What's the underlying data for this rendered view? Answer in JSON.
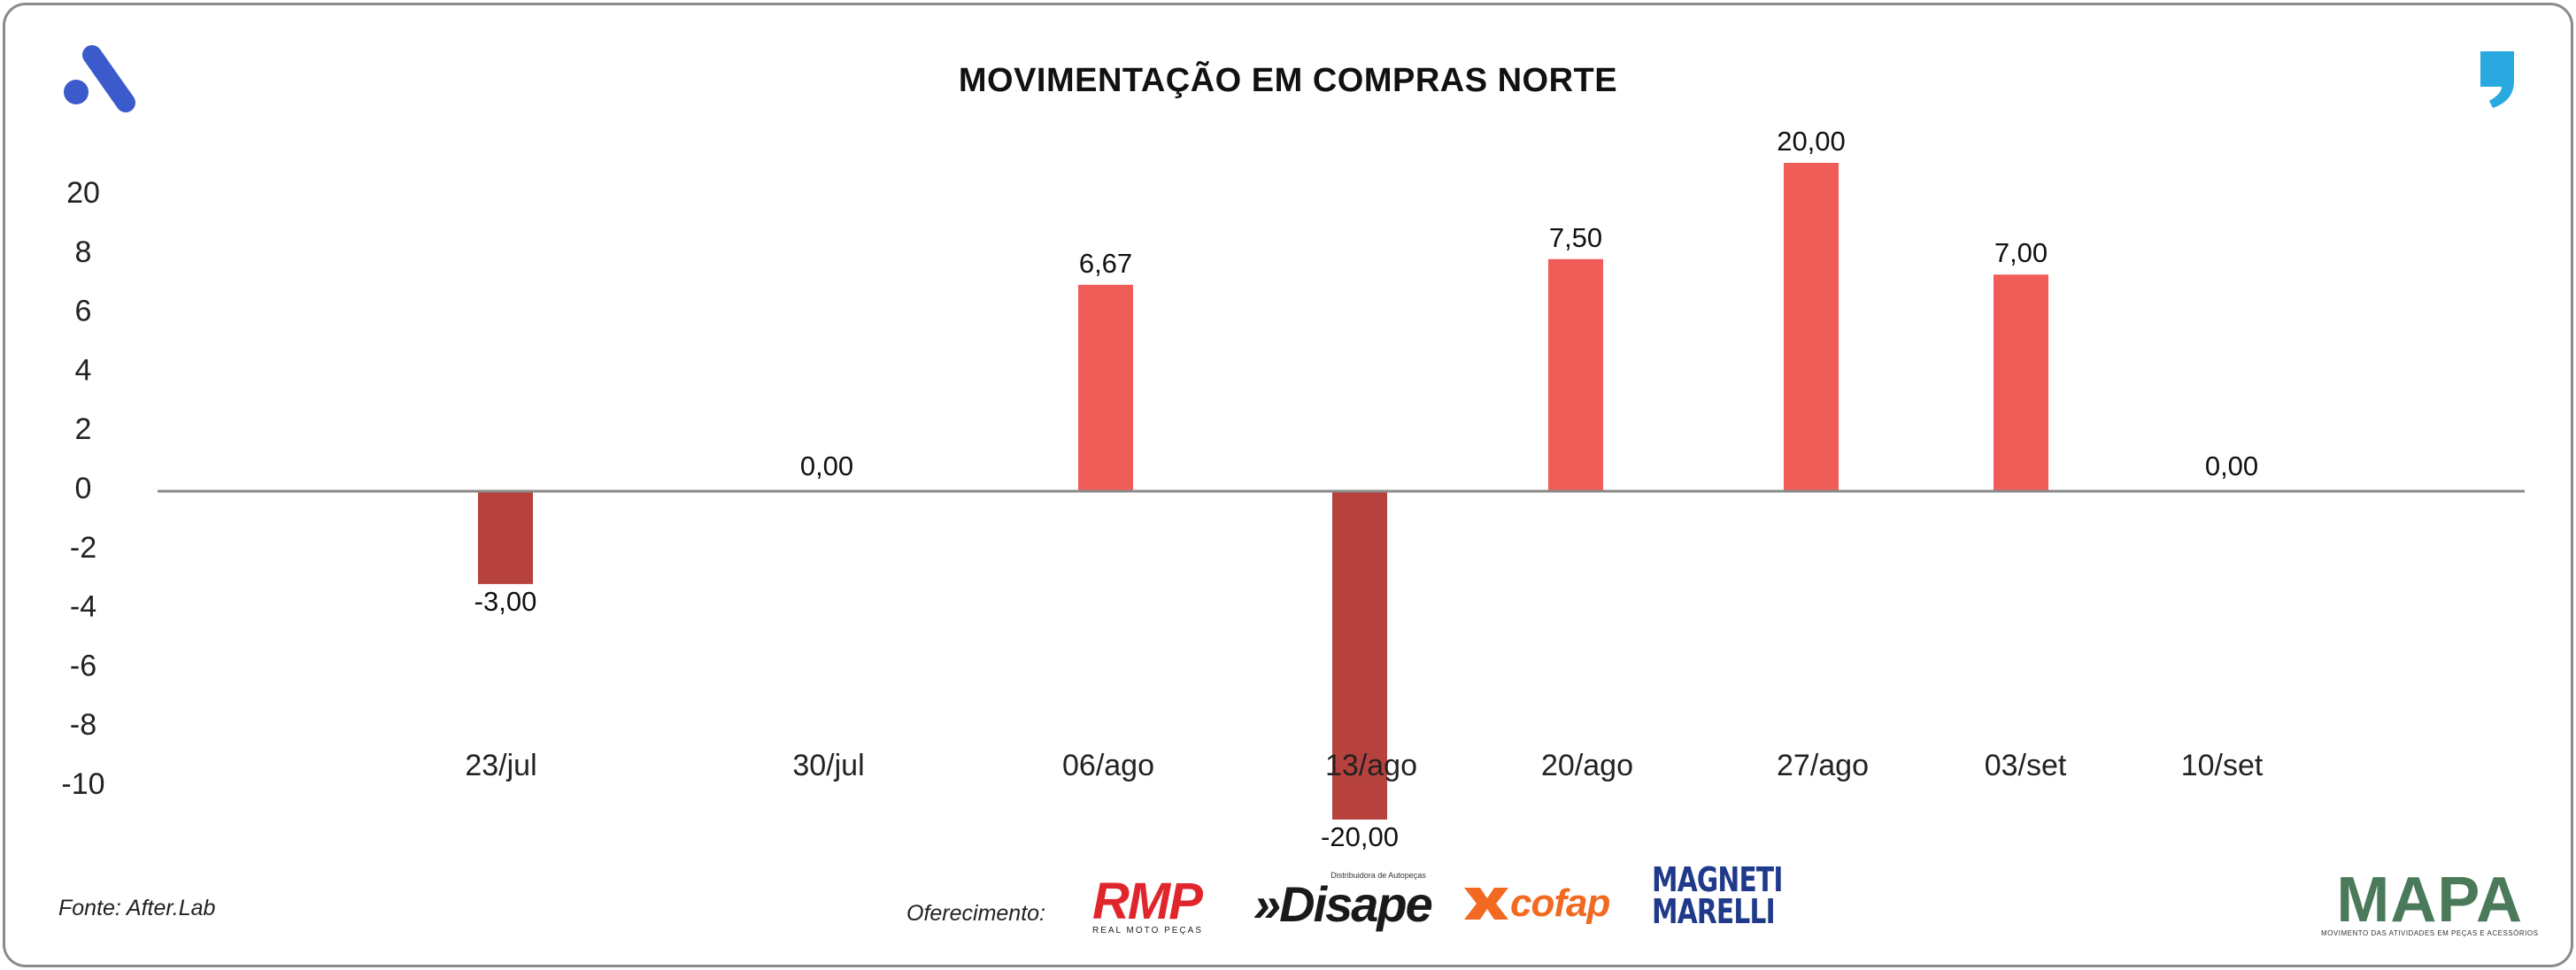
{
  "chart_data": {
    "type": "bar",
    "title": "MOVIMENTAÇÃO EM COMPRAS NORTE",
    "categories": [
      "23/jul",
      "30/jul",
      "06/ago",
      "13/ago",
      "20/ago",
      "27/ago",
      "03/set",
      "10/set"
    ],
    "values": [
      -3.0,
      0.0,
      6.67,
      -20.0,
      7.5,
      20.0,
      7.0,
      0.0
    ],
    "data_labels": [
      "-3,00",
      "0,00",
      "6,67",
      "-20,00",
      "7,50",
      "20,00",
      "7,00",
      "0,00"
    ],
    "yticks": [
      "20",
      "8",
      "6",
      "4",
      "2",
      "0",
      "-2",
      "-4",
      "-6",
      "-8",
      "-10"
    ],
    "xlabel": "",
    "ylabel": "",
    "grid": false,
    "positive_color": "#f05d58",
    "negative_color": "#b7413d",
    "axis_color": "#8a8a8a"
  },
  "footer": {
    "source": "Fonte: After.Lab",
    "sponsor_label": "Oferecimento:"
  },
  "brands": {
    "rmp": "RMP",
    "rmp_sub": "REAL MOTO PEÇAS",
    "disape": "»Disape",
    "disape_sub": "Distribuidora de Autopeças",
    "cofap": "cofap",
    "magneti_line1": "MAGNETI",
    "magneti_line2": "MARELLI",
    "mapa": "MAPA",
    "mapa_sub": "MOVIMENTO DAS ATIVIDADES EM PEÇAS E ACESSÓRIOS"
  },
  "colors": {
    "logo_blue": "#3b5bcc",
    "quote_blue": "#29a9e0"
  }
}
